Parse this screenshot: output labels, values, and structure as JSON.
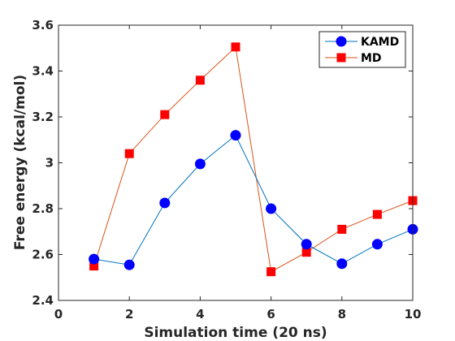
{
  "chart_data": {
    "type": "line",
    "title": "",
    "xlabel": "Simulation time (20 ns)",
    "ylabel": "Free energy (kcal/mol)",
    "xlim": [
      0,
      10
    ],
    "ylim": [
      2.4,
      3.6
    ],
    "xticks": [
      "0",
      "2",
      "4",
      "6",
      "8",
      "10"
    ],
    "yticks": [
      "2.4",
      "2.6",
      "2.8",
      "3",
      "3.2",
      "3.4",
      "3.6"
    ],
    "grid": false,
    "legend_position": "top-right",
    "x": [
      1,
      2,
      3,
      4,
      5,
      6,
      7,
      8,
      9,
      10
    ],
    "series": [
      {
        "name": "KAMD",
        "color": "#0072BD",
        "marker_color": "#0000FF",
        "marker": "circle",
        "values": [
          2.58,
          2.555,
          2.825,
          2.995,
          3.12,
          2.8,
          2.645,
          2.56,
          2.645,
          2.71
        ]
      },
      {
        "name": "MD",
        "color": "#D95319",
        "marker_color": "#FF0000",
        "marker": "square",
        "values": [
          2.55,
          3.04,
          3.21,
          3.36,
          3.505,
          2.525,
          2.61,
          2.71,
          2.775,
          2.835
        ]
      }
    ]
  }
}
